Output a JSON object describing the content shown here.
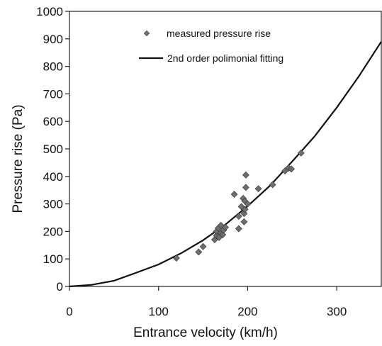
{
  "chart_data": {
    "type": "scatter",
    "xlabel": "Entrance velocity (km/h)",
    "ylabel": "Pressure rise (Pa)",
    "xlim": [
      0,
      350
    ],
    "ylim": [
      0,
      1000
    ],
    "x_ticks": [
      0,
      100,
      200,
      300
    ],
    "y_ticks": [
      0,
      100,
      200,
      300,
      400,
      500,
      600,
      700,
      800,
      900,
      1000
    ],
    "grid": false,
    "legend_position": "top-center",
    "series": [
      {
        "name": "measured pressure rise",
        "kind": "scatter",
        "marker": "diamond",
        "color": "#6e6e6e",
        "points": [
          [
            120,
            103
          ],
          [
            145,
            125
          ],
          [
            150,
            145
          ],
          [
            163,
            170
          ],
          [
            165,
            185
          ],
          [
            165,
            200
          ],
          [
            167,
            212
          ],
          [
            168,
            178
          ],
          [
            170,
            195
          ],
          [
            170,
            222
          ],
          [
            172,
            188
          ],
          [
            173,
            205
          ],
          [
            175,
            215
          ],
          [
            185,
            335
          ],
          [
            190,
            210
          ],
          [
            190,
            255
          ],
          [
            193,
            290
          ],
          [
            195,
            320
          ],
          [
            196,
            235
          ],
          [
            196,
            265
          ],
          [
            197,
            280
          ],
          [
            197,
            310
          ],
          [
            198,
            360
          ],
          [
            198,
            405
          ],
          [
            200,
            300
          ],
          [
            212,
            355
          ],
          [
            228,
            370
          ],
          [
            242,
            420
          ],
          [
            246,
            430
          ],
          [
            249,
            427
          ],
          [
            260,
            485
          ]
        ]
      },
      {
        "name": "2nd order polimonial fitting",
        "kind": "line",
        "color": "#111111",
        "points": [
          [
            0,
            0
          ],
          [
            25,
            6
          ],
          [
            50,
            21
          ],
          [
            75,
            50
          ],
          [
            100,
            80
          ],
          [
            125,
            120
          ],
          [
            150,
            168
          ],
          [
            175,
            225
          ],
          [
            200,
            292
          ],
          [
            225,
            366
          ],
          [
            250,
            454
          ],
          [
            275,
            545
          ],
          [
            300,
            650
          ],
          [
            325,
            765
          ],
          [
            350,
            890
          ]
        ]
      }
    ]
  }
}
